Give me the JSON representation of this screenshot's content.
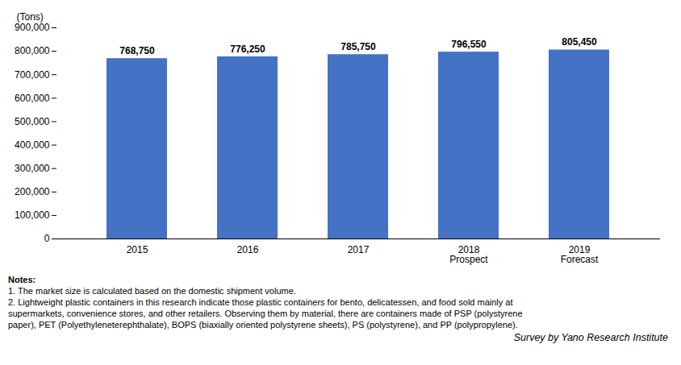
{
  "chart_data": {
    "type": "bar",
    "categories": [
      "2015",
      "2016",
      "2017",
      "2018\nProspect",
      "2019\nForecast"
    ],
    "values": [
      768750,
      776250,
      785750,
      796550,
      805450
    ],
    "value_labels": [
      "768,750",
      "776,250",
      "785,750",
      "796,550",
      "805,450"
    ],
    "data_labels": true,
    "color": "#4472C4",
    "ylabel": "(Tons)",
    "ylim": [
      0,
      900000
    ],
    "yticks": [
      0,
      {
        "value": 100000,
        "label": "100,000"
      },
      {
        "value": 200000,
        "label": "200,000"
      },
      {
        "value": 300000,
        "label": "300,000"
      },
      {
        "value": 400000,
        "label": "400,000"
      },
      {
        "value": 500000,
        "label": "500,000"
      },
      {
        "value": 600000,
        "label": "600,000"
      },
      {
        "value": 700000,
        "label": "700,000"
      },
      {
        "value": 800000,
        "label": "800,000"
      },
      {
        "value": 900000,
        "label": "900,000"
      }
    ],
    "grid": false,
    "notes": [
      "Notes:",
      "1. The market size is calculated based on the domestic shipment volume.",
      "2. Lightweight plastic containers in this research indicate those plastic containers for bento, delicatessen, and food sold mainly at",
      "supermarkets, convenience stores, and other retailers. Observing them by material, there are containers made of PSP (polystyrene",
      "paper), PET (Polyethyleneterephthalate), BOPS (biaxially oriented polystyrene sheets), PS (polystyrene), and PP (polypropylene)."
    ],
    "source": "Survey by Yano Research Institute"
  }
}
